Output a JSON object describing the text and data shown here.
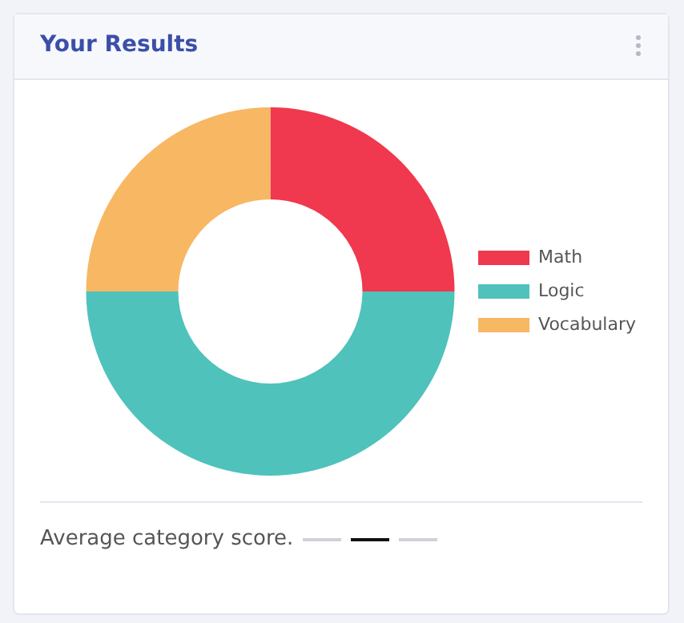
{
  "chart_data": {
    "type": "donut",
    "title": "Your Results",
    "categories": [
      "Math",
      "Logic",
      "Vocabulary"
    ],
    "values": [
      25,
      50,
      25
    ],
    "colors": [
      "#f0384e",
      "#4fc2bc",
      "#f8b763"
    ],
    "legend": "right",
    "annotations": [
      "Average category score."
    ]
  }
}
